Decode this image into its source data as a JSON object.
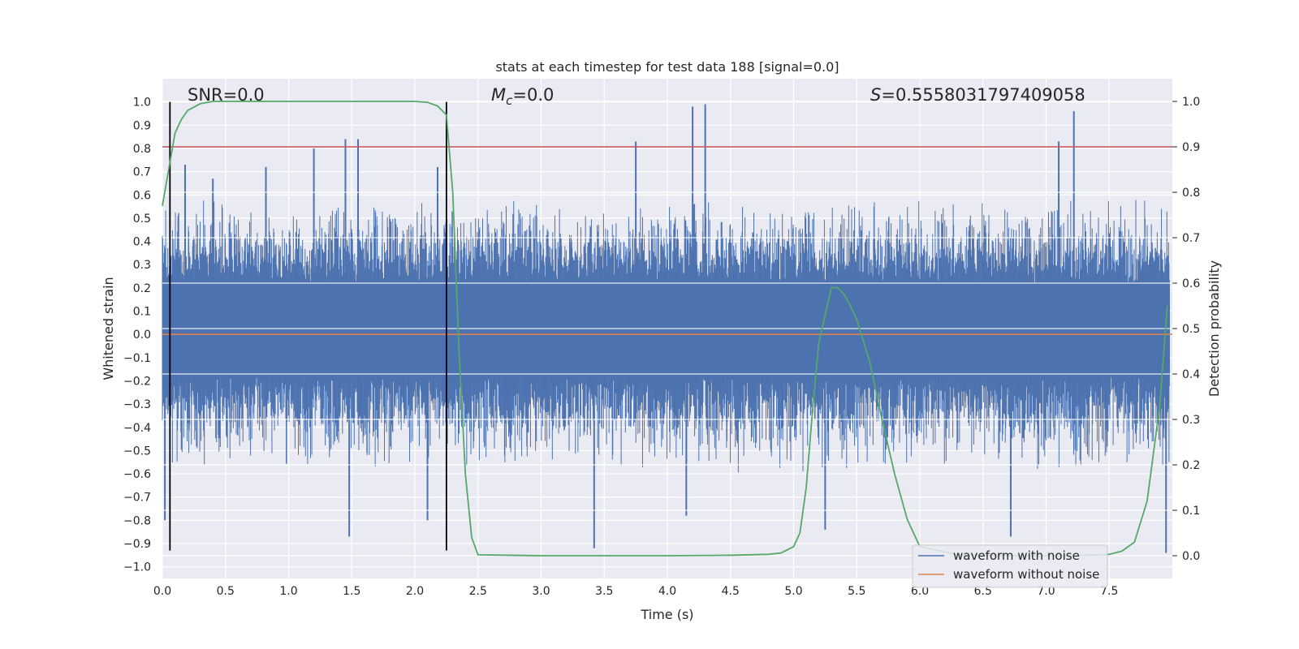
{
  "chart_data": {
    "type": "line",
    "title": "stats at each timestep for test data 188 [signal=0.0]",
    "xlabel": "Time (s)",
    "ylabel_left": "Whitened strain",
    "ylabel_right": "Detection probability",
    "xlim": [
      0.0,
      8.0
    ],
    "ylim_left": [
      -1.05,
      1.1
    ],
    "ylim_right": [
      -0.05,
      1.05
    ],
    "x_ticks": [
      "0.0",
      "0.5",
      "1.0",
      "1.5",
      "2.0",
      "2.5",
      "3.0",
      "3.5",
      "4.0",
      "4.5",
      "5.0",
      "5.5",
      "6.0",
      "6.5",
      "7.0",
      "7.5"
    ],
    "y_ticks_left": [
      "1.0",
      "0.9",
      "0.8",
      "0.7",
      "0.6",
      "0.5",
      "0.4",
      "0.3",
      "0.2",
      "0.1",
      "0.0",
      "−0.1",
      "−0.2",
      "−0.3",
      "−0.4",
      "−0.5",
      "−0.6",
      "−0.7",
      "−0.8",
      "−0.9",
      "−1.0"
    ],
    "y_ticks_right": [
      "1.0",
      "0.9",
      "0.8",
      "0.7",
      "0.6",
      "0.5",
      "0.4",
      "0.3",
      "0.2",
      "0.1",
      "0.0"
    ],
    "annotations": {
      "snr": "SNR=0.0",
      "mc_symbol": "M",
      "mc_sub": "c",
      "mc_value": "=0.0",
      "s_symbol": "S",
      "s_value": "=0.5558031797409058"
    },
    "legend": {
      "placement": "bottom-right",
      "entries": [
        {
          "label": "waveform with noise",
          "color": "#4c72b0"
        },
        {
          "label": "waveform without noise",
          "color": "#dd8452"
        }
      ]
    },
    "threshold_right": 0.9,
    "threshold_color": "#c44e52",
    "vertical_markers_x": [
      0.06,
      2.25
    ],
    "noise_envelope": {
      "color": "#4c72b0",
      "typical_range": [
        -0.5,
        0.5
      ],
      "peaks": [
        {
          "x": 0.18,
          "y": 0.73
        },
        {
          "x": 0.4,
          "y": 0.67
        },
        {
          "x": 0.82,
          "y": 0.72
        },
        {
          "x": 1.2,
          "y": 0.8
        },
        {
          "x": 1.45,
          "y": 0.84
        },
        {
          "x": 1.55,
          "y": 0.84
        },
        {
          "x": 2.18,
          "y": 0.72
        },
        {
          "x": 3.75,
          "y": 0.83
        },
        {
          "x": 4.2,
          "y": 0.98
        },
        {
          "x": 4.3,
          "y": 0.99
        },
        {
          "x": 7.1,
          "y": 0.83
        },
        {
          "x": 7.22,
          "y": 0.96
        },
        {
          "x": 0.02,
          "y": -0.8
        },
        {
          "x": 1.48,
          "y": -0.87
        },
        {
          "x": 2.1,
          "y": -0.8
        },
        {
          "x": 3.42,
          "y": -0.92
        },
        {
          "x": 4.15,
          "y": -0.78
        },
        {
          "x": 5.25,
          "y": -0.84
        },
        {
          "x": 6.72,
          "y": -0.87
        },
        {
          "x": 7.95,
          "y": -0.94
        }
      ]
    },
    "series": [
      {
        "name": "waveform without noise",
        "axis": "left",
        "color": "#dd8452",
        "x": [
          0.0,
          8.0
        ],
        "y": [
          0.0,
          0.0
        ]
      },
      {
        "axis": "right",
        "color": "#55a868",
        "x": [
          0.0,
          0.05,
          0.1,
          0.15,
          0.2,
          0.3,
          0.4,
          0.6,
          1.0,
          1.5,
          2.0,
          2.1,
          2.18,
          2.25,
          2.3,
          2.35,
          2.4,
          2.45,
          2.5,
          3.0,
          3.5,
          4.0,
          4.5,
          4.8,
          4.9,
          5.0,
          5.05,
          5.1,
          5.15,
          5.2,
          5.25,
          5.3,
          5.35,
          5.4,
          5.45,
          5.5,
          5.6,
          5.7,
          5.8,
          5.9,
          6.0,
          6.3,
          6.6,
          6.9,
          7.2,
          7.5,
          7.6,
          7.7,
          7.8,
          7.9,
          7.96
        ],
        "y": [
          0.77,
          0.85,
          0.93,
          0.96,
          0.98,
          0.995,
          1.0,
          1.0,
          1.0,
          1.0,
          1.0,
          0.998,
          0.99,
          0.97,
          0.8,
          0.45,
          0.18,
          0.04,
          0.002,
          0.0,
          0.0,
          0.0,
          0.001,
          0.003,
          0.006,
          0.02,
          0.05,
          0.15,
          0.32,
          0.47,
          0.53,
          0.59,
          0.59,
          0.575,
          0.55,
          0.52,
          0.43,
          0.3,
          0.18,
          0.08,
          0.02,
          0.002,
          0.0,
          0.0,
          0.0,
          0.003,
          0.01,
          0.03,
          0.12,
          0.33,
          0.55
        ]
      }
    ]
  }
}
